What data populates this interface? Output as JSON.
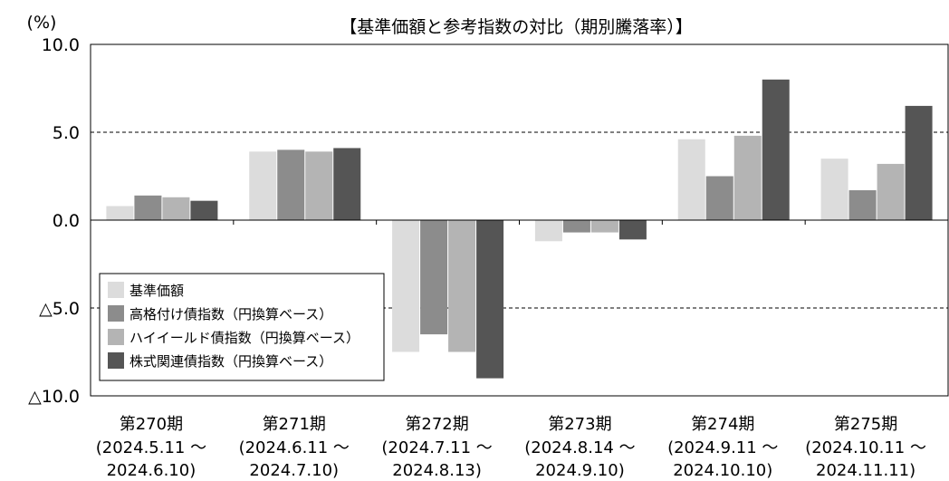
{
  "chart_data": {
    "type": "bar",
    "title": "【基準価額と参考指数の対比（期別騰落率）】",
    "ylabel": "(%)",
    "ylim": [
      -10.0,
      10.0
    ],
    "yticks": [
      {
        "value": 10.0,
        "label": "10.0"
      },
      {
        "value": 5.0,
        "label": "5.0"
      },
      {
        "value": 0.0,
        "label": "0.0"
      },
      {
        "value": -5.0,
        "label": "△5.0"
      },
      {
        "value": -10.0,
        "label": "△10.0"
      }
    ],
    "grid": "dashed at ±5.0",
    "legend_position": "lower-left",
    "categories": [
      {
        "name": "第270期",
        "period": "(2024.5.11 ～",
        "end": "2024.6.10)"
      },
      {
        "name": "第271期",
        "period": "(2024.6.11 ～",
        "end": "2024.7.10)"
      },
      {
        "name": "第272期",
        "period": "(2024.7.11 ～",
        "end": "2024.8.13)"
      },
      {
        "name": "第273期",
        "period": "(2024.8.14 ～",
        "end": "2024.9.10)"
      },
      {
        "name": "第274期",
        "period": "(2024.9.11 ～",
        "end": "2024.10.10)"
      },
      {
        "name": "第275期",
        "period": "(2024.10.11 ～",
        "end": "2024.11.11)"
      }
    ],
    "series": [
      {
        "name": "基準価額",
        "color": "#dcdcdc",
        "values": [
          0.8,
          3.9,
          -7.5,
          -1.2,
          4.6,
          3.5
        ]
      },
      {
        "name": "高格付け債指数（円換算ベース）",
        "color": "#8c8c8c",
        "values": [
          1.4,
          4.0,
          -6.5,
          -0.7,
          2.5,
          1.7
        ]
      },
      {
        "name": "ハイイールド債指数（円換算ベース）",
        "color": "#b4b4b4",
        "values": [
          1.3,
          3.9,
          -7.5,
          -0.7,
          4.8,
          3.2
        ]
      },
      {
        "name": "株式関連債指数（円換算ベース）",
        "color": "#555555",
        "values": [
          1.1,
          4.1,
          -9.0,
          -1.1,
          8.0,
          6.5
        ]
      }
    ]
  }
}
